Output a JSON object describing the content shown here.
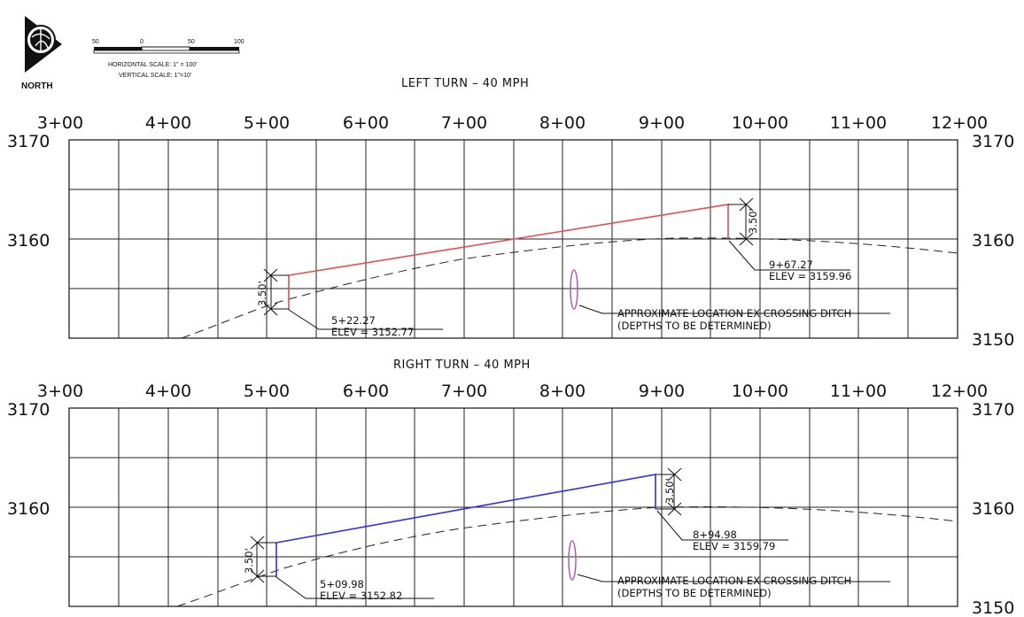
{
  "north_arrow": {
    "label": "NORTH",
    "icon": "north-arrow-icon"
  },
  "scale_bar": {
    "ticks": [
      "50",
      "0",
      "50",
      "100"
    ],
    "horizontal": "HORIZONTAL SCALE:  1\" = 100'",
    "vertical": "VERTICAL SCALE:  1\"=10'"
  },
  "profiles": [
    {
      "title": "LEFT TURN  –  40 MPH",
      "stations": [
        "3+00",
        "4+00",
        "5+00",
        "6+00",
        "7+00",
        "8+00",
        "9+00",
        "10+00",
        "11+00",
        "12+00"
      ],
      "elev_left": [
        "3170",
        "3160"
      ],
      "elev_right": [
        "3170",
        "3160",
        "3150"
      ],
      "start_point": {
        "station": "5+22.27",
        "elev": "ELEV = 3152.77"
      },
      "end_point": {
        "station": "9+67.27",
        "elev": "ELEV = 3159.96"
      },
      "offset_label": "3.50'",
      "ditch_note": [
        "APPROXIMATE LOCATION EX CROSSING DITCH",
        "(DEPTHS TO BE DETERMINED)"
      ],
      "line_color": "#e05050"
    },
    {
      "title": "RIGHT TURN  –  40 MPH",
      "stations": [
        "3+00",
        "4+00",
        "5+00",
        "6+00",
        "7+00",
        "8+00",
        "9+00",
        "10+00",
        "11+00",
        "12+00"
      ],
      "elev_left": [
        "3170",
        "3160"
      ],
      "elev_right": [
        "3170",
        "3160",
        "3150"
      ],
      "start_point": {
        "station": "5+09.98",
        "elev": "ELEV = 3152.82"
      },
      "end_point": {
        "station": "8+94.98",
        "elev": "ELEV = 3159.79"
      },
      "offset_label": "3.50'",
      "ditch_note": [
        "APPROXIMATE LOCATION EX CROSSING DITCH",
        "(DEPTHS TO BE DETERMINED)"
      ],
      "line_color": "#3030e0"
    }
  ],
  "colors": {
    "ditch": "#b05cb0"
  }
}
